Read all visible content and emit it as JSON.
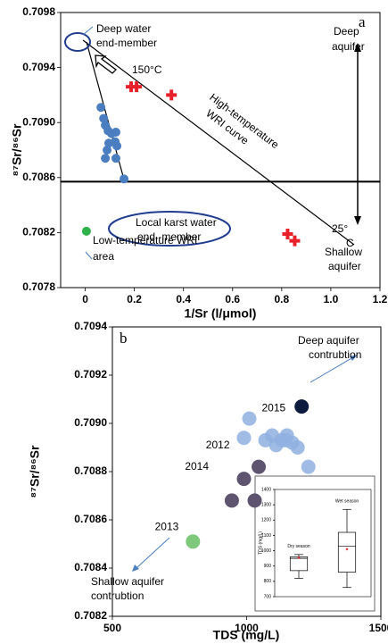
{
  "chart_data": [
    {
      "type": "scatter",
      "xlabel": "1/Sr (l/μmol)",
      "ylabel": "⁸⁷Sr/⁸⁶Sr",
      "xlim": [
        -0.1,
        1.2
      ],
      "ylim": [
        0.7078,
        0.7098
      ],
      "xticks": [
        0,
        0.2,
        0.4,
        0.6,
        0.8,
        {
          "value": 1,
          "label": "1.0"
        },
        1.2
      ],
      "yticks": [
        0.7078,
        0.7082,
        0.7086,
        {
          "value": 0.709,
          "label": "0.7090"
        },
        0.7094,
        0.7098
      ],
      "hline": 0.70857,
      "series": [
        {
          "color": "#4a7ec0",
          "marker": "circle",
          "x": [
            0.064,
            0.075,
            0.082,
            0.093,
            0.107,
            0.125,
            0.122,
            0.129,
            0.096,
            0.089,
            0.125,
            0.082,
            0.158
          ],
          "values": [
            0.70911,
            0.70903,
            0.70898,
            0.70894,
            0.70892,
            0.70893,
            0.70886,
            0.70883,
            0.70885,
            0.7088,
            0.70874,
            0.70874,
            0.70859
          ]
        },
        {
          "color": "#e8202a",
          "marker": "cross",
          "x": [
            0.187,
            0.209,
            0.351,
            0.824,
            0.853
          ],
          "values": [
            0.70926,
            0.70926,
            0.7092,
            0.70819,
            0.70814
          ]
        },
        {
          "color": "#2fb24a",
          "marker": "circle",
          "x": [
            0.005
          ],
          "values": [
            0.70821
          ]
        }
      ],
      "annotations": [
        "a",
        "Deep water",
        "end-member",
        "150°C",
        "High-temperature",
        "WRI curve",
        "Local karst water",
        "end -member",
        "25°",
        "C",
        "Deep",
        "aquifer",
        "Shallow",
        "aquifer",
        "Low-temperature WRI",
        "area"
      ]
    },
    {
      "type": "scatter",
      "xlabel": "TDS (mg/L)",
      "ylabel": "⁸⁷Sr/⁸⁶Sr",
      "xlim": [
        500,
        1500
      ],
      "ylim": [
        0.7082,
        0.7094
      ],
      "xticks": [
        500,
        1000,
        1500
      ],
      "yticks": [
        0.7082,
        0.7084,
        0.7086,
        0.7088,
        {
          "value": 0.709,
          "label": "0.7090"
        },
        0.7092,
        0.7094
      ],
      "series": [
        {
          "name": "2015",
          "color": "#0d1b3e",
          "marker": "circle",
          "x": [
            1205
          ],
          "values": [
            0.70907
          ]
        },
        {
          "name": "2012",
          "color": "#8fb0e0",
          "marker": "circle",
          "x": [
            1010,
            990,
            1070,
            1095,
            1130,
            1150,
            1110,
            1170,
            1190,
            1230,
            1145
          ],
          "values": [
            0.70902,
            0.70894,
            0.70893,
            0.70895,
            0.70893,
            0.70895,
            0.70891,
            0.70892,
            0.7089,
            0.70882,
            0.70893
          ]
        },
        {
          "name": "2014",
          "color": "#5e5470",
          "marker": "circle",
          "x": [
            1045,
            990,
            945,
            1030
          ],
          "values": [
            0.70882,
            0.70877,
            0.70868,
            0.70868
          ]
        },
        {
          "name": "2013",
          "color": "#7dc87a",
          "marker": "circle",
          "x": [
            800
          ],
          "values": [
            0.70851
          ]
        }
      ],
      "annotations": [
        "b",
        "Deep aquifer",
        "contrubtion",
        "Shallow aquifer",
        "contrubtion"
      ]
    },
    {
      "type": "box",
      "ylabel": "TDS (mg/L)",
      "categories": [
        "Dry season",
        "Wet season"
      ],
      "ylim": [
        700,
        1400
      ],
      "yticks": [
        700,
        800,
        900,
        1000,
        1100,
        1200,
        1300,
        1400
      ],
      "color": "#000000",
      "mean_color": "#e8202a",
      "boxes": [
        {
          "min": 820,
          "q1": 870,
          "median": 950,
          "q3": 960,
          "max": 975,
          "mean": 955
        },
        {
          "min": 760,
          "q1": 860,
          "median": 1030,
          "q3": 1120,
          "max": 1270,
          "mean": 1010
        }
      ]
    }
  ]
}
